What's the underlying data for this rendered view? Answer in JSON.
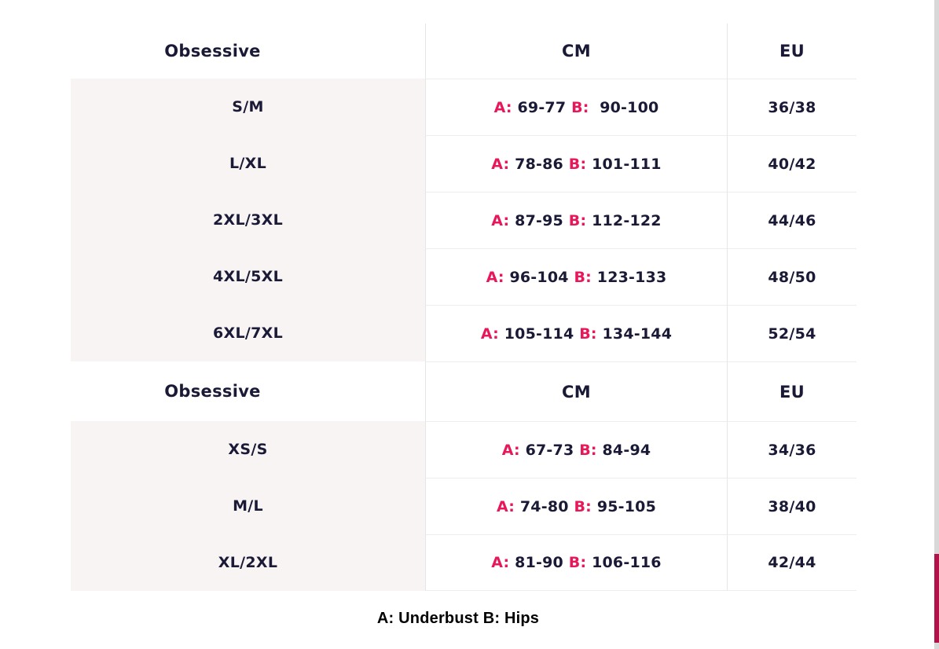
{
  "legend": {
    "a_prefix": "A:",
    "b_prefix": "B:"
  },
  "footnote": "A: Underbust B: Hips",
  "colors": {
    "accent": "#e8175a",
    "navy": "#1a1a36",
    "shade": "#f8f4f4",
    "hline": "#f0ecec",
    "vline": "#e8e5e5",
    "track": "#d8d8d8",
    "thumb": "#b2124a",
    "footnote": "#000000"
  },
  "tables": [
    {
      "header": {
        "brand": "Obsessive",
        "cm": "CM",
        "eu": "EU"
      },
      "rows": [
        {
          "size": "S/M",
          "a": "69-77",
          "b": "90-100",
          "eu": "36/38"
        },
        {
          "size": "L/XL",
          "a": "78-86",
          "b": "101-111",
          "eu": "40/42"
        },
        {
          "size": "2XL/3XL",
          "a": "87-95",
          "b": "112-122",
          "eu": "44/46"
        },
        {
          "size": "4XL/5XL",
          "a": "96-104",
          "b": "123-133",
          "eu": "48/50"
        },
        {
          "size": "6XL/7XL",
          "a": "105-114",
          "b": "134-144",
          "eu": "52/54"
        }
      ]
    },
    {
      "header": {
        "brand": "Obsessive",
        "cm": "CM",
        "eu": "EU"
      },
      "rows": [
        {
          "size": "XS/S",
          "a": "67-73",
          "b": "84-94",
          "eu": "34/36"
        },
        {
          "size": "M/L",
          "a": "74-80",
          "b": "95-105",
          "eu": "38/40"
        },
        {
          "size": "XL/2XL",
          "a": "81-90",
          "b": "106-116",
          "eu": "42/44"
        }
      ]
    }
  ]
}
